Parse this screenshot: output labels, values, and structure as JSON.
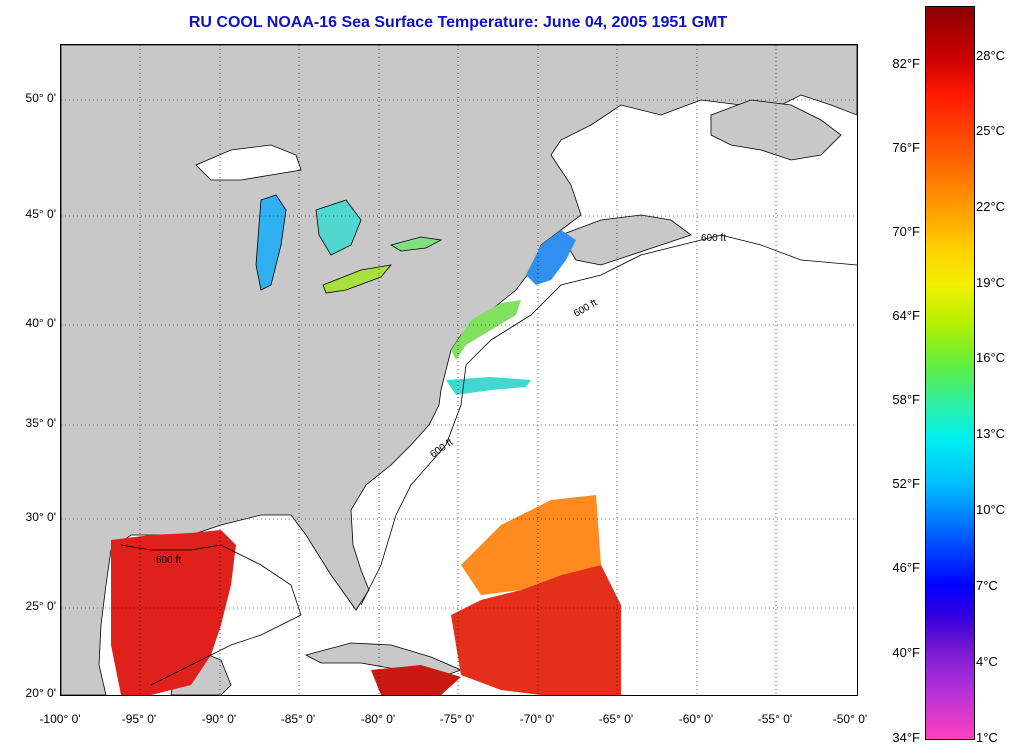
{
  "title": "RU COOL  NOAA-16  Sea Surface Temperature:  June 04, 2005 1951 GMT",
  "lat_labels": [
    "50° 0'",
    "45° 0'",
    "40° 0'",
    "35° 0'",
    "30° 0'",
    "25° 0'",
    "20° 0'"
  ],
  "lon_labels": [
    "-100° 0'",
    "-95° 0'",
    "-90° 0'",
    "-85° 0'",
    "-80° 0'",
    "-75° 0'",
    "-70° 0'",
    "-65° 0'",
    "-60° 0'",
    "-55° 0'",
    "-50° 0'"
  ],
  "contour_label": "600 ft",
  "colorbar": {
    "fahrenheit": [
      "82°F",
      "76°F",
      "70°F",
      "64°F",
      "58°F",
      "52°F",
      "46°F",
      "40°F",
      "34°F"
    ],
    "celsius": [
      "28°C",
      "25°C",
      "22°C",
      "19°C",
      "16°C",
      "13°C",
      "10°C",
      "7°C",
      "4°C",
      "1°C"
    ]
  },
  "colors": {
    "land": "#c8c8c8",
    "ocean_no_data": "#ffffff",
    "title": "#1010c8",
    "warm_sst": "#e01a10",
    "cool_sst": "#30c0f0"
  }
}
